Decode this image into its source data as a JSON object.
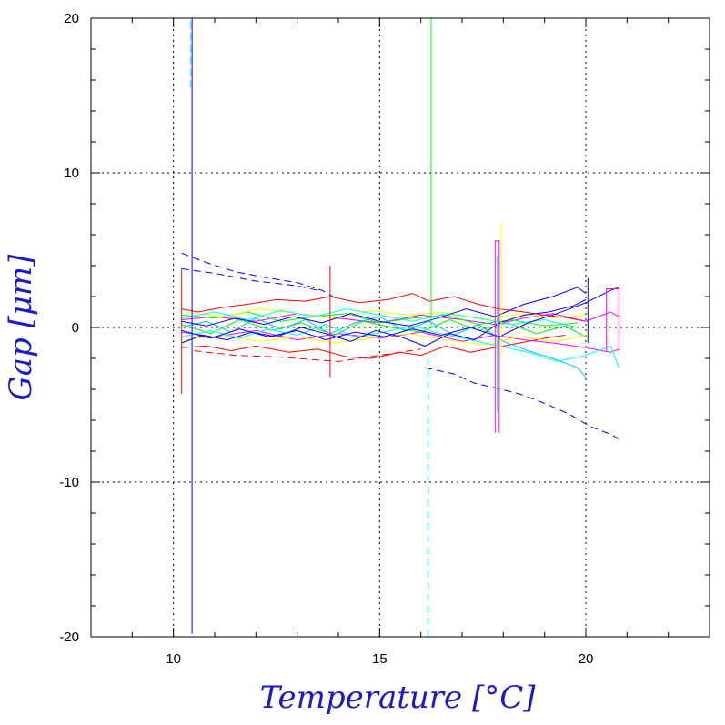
{
  "chart_data": {
    "type": "line",
    "title": "",
    "xlabel": "Temperature [°C]",
    "ylabel": "Gap [μm]",
    "xlim": [
      8,
      23
    ],
    "ylim": [
      -20,
      20
    ],
    "x_ticks": [
      10,
      15,
      20
    ],
    "y_ticks": [
      -20,
      -10,
      0,
      10,
      20
    ],
    "grid": true,
    "axis_title_color": "#1a1acc",
    "series_colors": [
      "#ff0000",
      "#0000ff",
      "#00c0ff",
      "#00ff00",
      "#ffff00",
      "#ff00ff",
      "#00ffff"
    ],
    "series": [
      {
        "color": "#0000ff",
        "style": "dashed",
        "x": [
          10.2,
          10.8,
          11.5,
          12.3,
          13.0,
          13.6,
          14.0
        ],
        "y": [
          4.8,
          4.2,
          3.6,
          3.2,
          2.9,
          2.4,
          1.8
        ]
      },
      {
        "color": "#0000ff",
        "style": "dashed",
        "x": [
          10.2,
          11.0,
          12.0,
          13.0,
          13.5
        ],
        "y": [
          3.8,
          3.5,
          3.0,
          2.7,
          2.4
        ]
      },
      {
        "color": "#0000ff",
        "style": "dashed",
        "x": [
          16.1,
          16.8,
          17.3,
          17.8,
          18.4,
          19.0,
          19.6,
          20.1,
          20.6,
          20.8
        ],
        "y": [
          -2.6,
          -3.0,
          -3.6,
          -3.9,
          -4.3,
          -4.9,
          -5.6,
          -6.4,
          -6.9,
          -7.2
        ]
      },
      {
        "color": "#ff0000",
        "style": "solid",
        "x": [
          10.2,
          10.6,
          11.2,
          11.8,
          12.5,
          13.2,
          13.8,
          14.5,
          15.2,
          15.8,
          16.2,
          16.8,
          17.4,
          17.9,
          18.5,
          19.0,
          19.6,
          20.0
        ],
        "y": [
          1.2,
          1.0,
          1.3,
          1.5,
          1.8,
          1.7,
          2.0,
          1.6,
          1.8,
          2.2,
          1.7,
          2.0,
          1.5,
          1.2,
          1.0,
          0.8,
          0.6,
          0.4
        ]
      },
      {
        "color": "#ff0000",
        "style": "solid",
        "x": [
          10.2,
          10.8,
          11.4,
          12.0,
          12.8,
          13.5,
          14.2,
          14.8,
          15.5,
          16.0,
          16.6,
          17.2,
          17.8,
          18.4,
          19.0,
          19.5
        ],
        "y": [
          -1.3,
          -1.2,
          -1.5,
          -1.2,
          -1.6,
          -1.4,
          -1.9,
          -2.0,
          -1.6,
          -1.8,
          -1.2,
          -1.6,
          -1.3,
          -1.0,
          -0.7,
          -0.5
        ]
      },
      {
        "color": "#ff0000",
        "style": "dashed",
        "x": [
          10.5,
          11.5,
          12.5,
          13.5,
          14.0,
          15.0,
          16.0
        ],
        "y": [
          -1.5,
          -1.8,
          -1.9,
          -2.1,
          -2.2,
          -1.8,
          -1.4
        ]
      },
      {
        "color": "#ff00ff",
        "style": "solid",
        "x": [
          10.2,
          11.0,
          12.0,
          13.0,
          14.0,
          15.0,
          16.0,
          17.0,
          17.8,
          18.5,
          19.2,
          20.0,
          20.6,
          20.8
        ],
        "y": [
          0.5,
          0.7,
          0.4,
          0.9,
          0.6,
          0.3,
          0.8,
          0.5,
          0.2,
          0.6,
          0.9,
          0.4,
          1.0,
          0.7
        ]
      },
      {
        "color": "#ff00ff",
        "style": "solid",
        "x": [
          10.2,
          11.0,
          12.0,
          13.0,
          14.0,
          15.0,
          16.0,
          17.0,
          17.8,
          18.5,
          19.2,
          20.0,
          20.6,
          20.8
        ],
        "y": [
          -0.3,
          -0.6,
          -0.2,
          -0.8,
          -0.4,
          -0.7,
          -0.3,
          -0.9,
          -0.5,
          -0.8,
          -1.0,
          -1.3,
          -1.6,
          -1.4
        ]
      },
      {
        "color": "#00ff00",
        "style": "solid",
        "x": [
          10.2,
          10.9,
          11.6,
          12.4,
          13.1,
          13.9,
          14.6,
          15.3,
          16.0,
          16.7,
          17.4,
          18.1,
          18.8,
          19.5,
          20.0
        ],
        "y": [
          0.2,
          -0.4,
          0.5,
          -0.2,
          0.3,
          -0.5,
          0.4,
          0.0,
          -0.3,
          0.5,
          -0.2,
          0.3,
          -0.4,
          0.1,
          -0.6
        ]
      },
      {
        "color": "#00ff00",
        "style": "solid",
        "x": [
          10.2,
          11.0,
          11.8,
          12.6,
          13.4,
          14.2,
          15.0,
          15.8,
          16.6,
          17.4,
          18.2,
          19.0,
          19.8
        ],
        "y": [
          0.8,
          0.6,
          1.0,
          0.4,
          0.7,
          0.9,
          0.3,
          0.6,
          0.8,
          0.2,
          0.5,
          0.1,
          0.3
        ]
      },
      {
        "color": "#ffff00",
        "style": "solid",
        "x": [
          10.3,
          11.2,
          12.1,
          13.0,
          13.9,
          14.8,
          15.7,
          16.6,
          17.5,
          18.4,
          19.3,
          20.0
        ],
        "y": [
          -0.8,
          -0.5,
          -0.9,
          -0.6,
          -1.0,
          -0.7,
          -0.4,
          -0.8,
          -1.1,
          -0.6,
          -0.9,
          -0.5
        ]
      },
      {
        "color": "#ffff00",
        "style": "solid",
        "x": [
          10.3,
          11.2,
          12.1,
          13.0,
          13.9,
          14.8,
          15.7,
          16.6,
          17.5,
          18.4,
          19.3,
          20.0
        ],
        "y": [
          1.0,
          0.7,
          1.2,
          0.9,
          0.6,
          1.1,
          0.8,
          1.0,
          0.5,
          0.9,
          0.6,
          0.8
        ]
      },
      {
        "color": "#00c0ff",
        "style": "solid",
        "x": [
          10.2,
          10.8,
          11.4,
          12.0,
          12.6,
          13.2,
          13.8,
          14.4,
          15.0,
          15.6,
          16.2,
          16.8,
          17.4,
          18.0,
          18.6,
          19.2,
          19.8,
          20.0
        ],
        "y": [
          0.0,
          0.4,
          -0.3,
          0.6,
          -0.1,
          0.5,
          -0.4,
          0.3,
          0.7,
          -0.2,
          0.4,
          -0.5,
          0.2,
          -0.9,
          -1.5,
          -2.0,
          -2.6,
          -3.2
        ]
      },
      {
        "color": "#00ffff",
        "style": "solid",
        "x": [
          10.2,
          10.9,
          11.6,
          12.3,
          13.0,
          13.7,
          14.4,
          15.1,
          15.8,
          16.5,
          17.2,
          17.9,
          18.6,
          19.3,
          20.0,
          20.6,
          20.8
        ],
        "y": [
          -0.6,
          -0.2,
          -0.7,
          -0.1,
          -0.5,
          0.2,
          -0.6,
          -0.3,
          0.1,
          -0.4,
          -0.8,
          -1.2,
          -1.6,
          -2.2,
          -1.8,
          -1.2,
          -2.6
        ]
      },
      {
        "color": "#00ffff",
        "style": "solid",
        "x": [
          10.2,
          11.0,
          11.8,
          12.6,
          13.4,
          14.2,
          15.0,
          15.8,
          16.6,
          17.4,
          18.2,
          19.0,
          19.8
        ],
        "y": [
          0.6,
          1.0,
          0.5,
          1.1,
          0.7,
          1.2,
          0.8,
          0.4,
          0.9,
          0.6,
          0.2,
          0.5,
          0.0
        ]
      },
      {
        "color": "#0000ff",
        "style": "solid",
        "x": [
          10.2,
          10.7,
          11.3,
          11.9,
          12.5,
          13.1,
          13.7,
          14.3,
          14.9,
          15.5,
          16.1,
          16.7,
          17.3,
          17.9,
          18.5,
          19.1,
          19.7,
          20.0
        ],
        "y": [
          -1.0,
          -0.5,
          -0.8,
          -0.3,
          -0.6,
          0.0,
          -0.4,
          -0.9,
          -0.2,
          -0.6,
          -1.2,
          -0.4,
          -0.8,
          0.3,
          0.8,
          1.0,
          1.4,
          1.8
        ]
      },
      {
        "color": "#0000ff",
        "style": "solid",
        "x": [
          10.2,
          10.8,
          11.5,
          12.2,
          12.9,
          13.6,
          14.3,
          15.0,
          15.7,
          16.4,
          17.1,
          17.8,
          18.5,
          19.2,
          19.8,
          20.0
        ],
        "y": [
          0.4,
          0.1,
          0.6,
          0.2,
          0.7,
          0.3,
          0.9,
          0.4,
          0.1,
          0.6,
          1.2,
          0.7,
          1.5,
          2.0,
          2.6,
          2.2
        ]
      },
      {
        "color": "#0000ff",
        "style": "solid",
        "x": [
          10.2,
          10.9,
          11.6,
          12.3,
          13.0,
          13.7,
          14.4,
          15.1,
          15.8,
          16.5,
          17.2,
          17.9,
          18.6,
          19.3,
          20.0,
          20.6,
          20.8
        ],
        "y": [
          -0.2,
          -0.7,
          -0.1,
          -0.6,
          -0.2,
          -0.8,
          -0.3,
          -0.6,
          -0.1,
          -0.5,
          0.0,
          -0.6,
          0.3,
          0.9,
          1.6,
          2.4,
          2.6
        ]
      },
      {
        "color": "#ff0000",
        "style": "solid",
        "x": [
          10.2,
          10.2
        ],
        "y": [
          -4.3,
          3.8
        ]
      },
      {
        "color": "#ff0000",
        "style": "solid",
        "x": [
          13.8,
          13.8
        ],
        "y": [
          -3.2,
          4.0
        ]
      },
      {
        "color": "#0000ff",
        "style": "solid",
        "x": [
          10.45,
          10.45
        ],
        "y": [
          -19.8,
          20.0
        ]
      },
      {
        "color": "#00ffff",
        "style": "dashed",
        "x": [
          10.42,
          10.42
        ],
        "y": [
          15.5,
          20.0
        ]
      },
      {
        "color": "#00ff00",
        "style": "solid",
        "x": [
          16.25,
          16.25
        ],
        "y": [
          0.0,
          20.0
        ]
      },
      {
        "color": "#00ffff",
        "style": "dashed",
        "x": [
          16.18,
          16.18
        ],
        "y": [
          -20.0,
          -2.0
        ]
      },
      {
        "color": "#ff00ff",
        "style": "solid",
        "x": [
          17.8,
          17.8,
          17.9,
          17.9
        ],
        "y": [
          -6.8,
          5.6,
          5.6,
          -6.8
        ]
      },
      {
        "color": "#ffff00",
        "style": "solid",
        "x": [
          17.95,
          17.95
        ],
        "y": [
          -2.0,
          6.8
        ]
      },
      {
        "color": "#00ffff",
        "style": "solid",
        "x": [
          17.85,
          17.85
        ],
        "y": [
          -5.5,
          4.6
        ]
      },
      {
        "color": "#0000ff",
        "style": "solid",
        "x": [
          20.05,
          20.05
        ],
        "y": [
          -1.0,
          3.2
        ]
      },
      {
        "color": "#ff00ff",
        "style": "solid",
        "x": [
          20.5,
          20.5,
          20.8,
          20.8
        ],
        "y": [
          -1.5,
          2.5,
          2.5,
          -1.5
        ]
      }
    ]
  }
}
